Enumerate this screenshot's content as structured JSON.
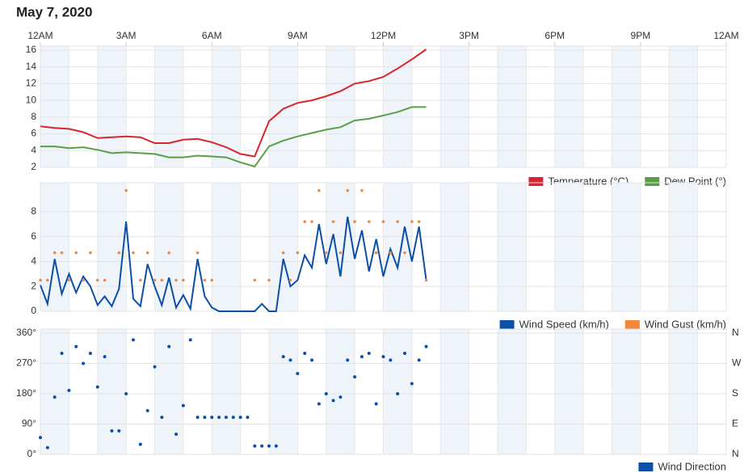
{
  "date": "May 7, 2020",
  "chart_data": [
    {
      "type": "line",
      "x": [
        0,
        0.5,
        1,
        1.5,
        2,
        2.5,
        3,
        3.5,
        4,
        4.5,
        5,
        5.5,
        6,
        6.5,
        7,
        7.5,
        8,
        8.5,
        9,
        9.5,
        10,
        10.5,
        11,
        11.5,
        12,
        12.5,
        13,
        13.5
      ],
      "xlim": [
        0,
        24
      ],
      "xticks": [
        {
          "value": 0,
          "label": "12AM"
        },
        {
          "value": 3,
          "label": "3AM"
        },
        {
          "value": 6,
          "label": "6AM"
        },
        {
          "value": 9,
          "label": "9AM"
        },
        {
          "value": 12,
          "label": "12PM"
        },
        {
          "value": 15,
          "label": "3PM"
        },
        {
          "value": 18,
          "label": "6PM"
        },
        {
          "value": 21,
          "label": "9PM"
        },
        {
          "value": 24,
          "label": "12AM"
        }
      ],
      "ylim": [
        2,
        16
      ],
      "yticks": [
        2,
        4,
        6,
        8,
        10,
        12,
        14,
        16
      ],
      "grid": true,
      "legend": "lower right",
      "series": [
        {
          "name": "Temperature (°C)",
          "color": "#d7262e",
          "values": [
            6.9,
            6.7,
            6.6,
            6.2,
            5.5,
            5.6,
            5.7,
            5.6,
            4.9,
            4.9,
            5.3,
            5.4,
            5.0,
            4.4,
            3.6,
            3.3,
            7.5,
            9.0,
            9.7,
            10.0,
            10.5,
            11.1,
            12.0,
            12.3,
            12.8,
            13.8,
            14.9,
            16.1
          ]
        },
        {
          "name": "Dew Point (°)",
          "color": "#5a9f47",
          "values": [
            4.5,
            4.5,
            4.3,
            4.4,
            4.1,
            3.7,
            3.8,
            3.7,
            3.6,
            3.2,
            3.2,
            3.4,
            3.3,
            3.2,
            2.6,
            2.1,
            4.5,
            5.2,
            5.7,
            6.1,
            6.5,
            6.8,
            7.6,
            7.8,
            8.2,
            8.6,
            9.2,
            9.2
          ]
        }
      ]
    },
    {
      "type": "line",
      "x": [
        0,
        0.25,
        0.5,
        0.75,
        1,
        1.25,
        1.5,
        1.75,
        2,
        2.25,
        2.5,
        2.75,
        3,
        3.25,
        3.5,
        3.75,
        4,
        4.25,
        4.5,
        4.75,
        5,
        5.25,
        5.5,
        5.75,
        6,
        6.25,
        6.5,
        6.75,
        7,
        7.25,
        7.5,
        7.75,
        8,
        8.25,
        8.5,
        8.75,
        9,
        9.25,
        9.5,
        9.75,
        10,
        10.25,
        10.5,
        10.75,
        11,
        11.25,
        11.5,
        11.75,
        12,
        12.25,
        12.5,
        12.75,
        13,
        13.25,
        13.5
      ],
      "xlim": [
        0,
        24
      ],
      "ylim": [
        0,
        10
      ],
      "yticks": [
        0,
        2,
        4,
        6,
        8
      ],
      "grid": true,
      "legend": "lower right",
      "series": [
        {
          "name": "Wind Speed (km/h)",
          "color": "#0c4fa6",
          "mode": "line",
          "values": [
            2.1,
            0.6,
            4.2,
            1.4,
            3.0,
            1.5,
            2.8,
            2.0,
            0.5,
            1.2,
            0.4,
            1.8,
            7.2,
            1.0,
            0.4,
            3.8,
            2.0,
            0.5,
            2.7,
            0.3,
            1.3,
            0.2,
            4.2,
            1.2,
            0.3,
            0,
            0,
            0,
            0,
            0,
            0,
            0.6,
            0,
            0,
            4.2,
            2.0,
            2.5,
            4.5,
            3.5,
            7.0,
            3.8,
            6.2,
            2.8,
            7.6,
            4.2,
            6.5,
            3.2,
            5.8,
            2.8,
            5.0,
            3.5,
            6.8,
            4.0,
            6.8,
            2.5
          ]
        },
        {
          "name": "Wind Gust (km/h)",
          "color": "#f4883a",
          "mode": "markers",
          "values": [
            2.5,
            2.5,
            4.7,
            4.7,
            2.5,
            4.7,
            2.5,
            4.7,
            2.5,
            2.5,
            null,
            4.7,
            9.7,
            4.7,
            2.5,
            4.7,
            2.5,
            2.5,
            4.7,
            2.5,
            2.5,
            null,
            4.7,
            2.5,
            2.5,
            null,
            null,
            null,
            null,
            null,
            2.5,
            null,
            2.5,
            null,
            4.7,
            2.5,
            4.7,
            7.2,
            7.2,
            9.7,
            4.7,
            7.2,
            4.7,
            9.7,
            7.2,
            9.7,
            7.2,
            4.7,
            7.2,
            4.7,
            7.2,
            4.7,
            7.2,
            7.2,
            2.5
          ]
        }
      ]
    },
    {
      "type": "scatter",
      "x": [
        0,
        0.25,
        0.5,
        0.75,
        1,
        1.25,
        1.5,
        1.75,
        2,
        2.25,
        2.5,
        2.75,
        3,
        3.25,
        3.5,
        3.75,
        4,
        4.25,
        4.5,
        4.75,
        5,
        5.25,
        5.5,
        5.75,
        6,
        6.25,
        6.5,
        6.75,
        7,
        7.25,
        7.5,
        7.75,
        8,
        8.25,
        8.5,
        8.75,
        9,
        9.25,
        9.5,
        9.75,
        10,
        10.25,
        10.5,
        10.75,
        11,
        11.25,
        11.5,
        11.75,
        12,
        12.25,
        12.5,
        12.75,
        13,
        13.25,
        13.5
      ],
      "xlim": [
        0,
        24
      ],
      "ylim": [
        0,
        360
      ],
      "yticks": [
        {
          "value": 0,
          "label": "0°"
        },
        {
          "value": 90,
          "label": "90°"
        },
        {
          "value": 180,
          "label": "180°"
        },
        {
          "value": 270,
          "label": "270°"
        },
        {
          "value": 360,
          "label": "360°"
        }
      ],
      "y2lim": [
        0,
        360
      ],
      "y2ticks": [
        {
          "value": 0,
          "label": "N"
        },
        {
          "value": 90,
          "label": "E"
        },
        {
          "value": 180,
          "label": "S"
        },
        {
          "value": 270,
          "label": "W"
        },
        {
          "value": 360,
          "label": "N"
        }
      ],
      "grid": true,
      "legend": "lower right",
      "series": [
        {
          "name": "Wind Direction",
          "color": "#0c4fa6",
          "values": [
            50,
            20,
            170,
            300,
            190,
            320,
            270,
            300,
            200,
            290,
            70,
            70,
            180,
            340,
            30,
            130,
            260,
            110,
            320,
            60,
            145,
            340,
            110,
            110,
            110,
            110,
            110,
            110,
            110,
            110,
            25,
            25,
            25,
            25,
            290,
            280,
            240,
            300,
            280,
            150,
            180,
            160,
            170,
            280,
            230,
            290,
            300,
            150,
            290,
            280,
            180,
            300,
            210,
            280,
            320
          ]
        }
      ]
    }
  ]
}
